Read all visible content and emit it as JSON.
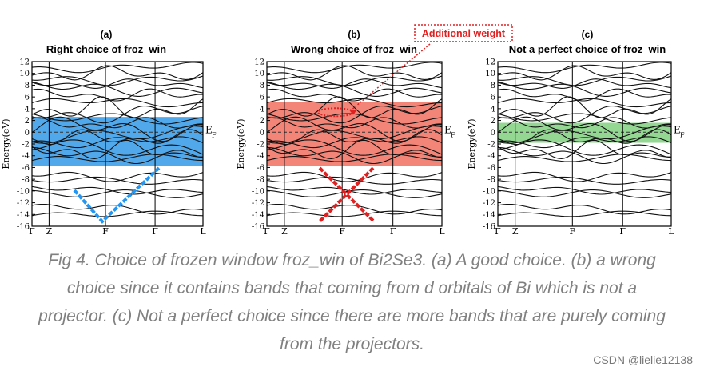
{
  "figure": {
    "y_axis_label": "Energy(eV)",
    "fermi_label_main": "E",
    "fermi_label_sub": "F",
    "callout": "Additional weight"
  },
  "chart_data": [
    {
      "type": "line",
      "panel": "(a)",
      "title": "Right choice of froz_win",
      "ylabel": "Energy(eV)",
      "ylim": [
        -16,
        12
      ],
      "yticks": [
        -16,
        -14,
        -12,
        -10,
        -8,
        -6,
        -4,
        -2,
        0,
        2,
        4,
        6,
        8,
        10,
        12
      ],
      "xticks": [
        "Γ",
        "Z",
        "F",
        "Γ",
        "L"
      ],
      "fermi_level": 0,
      "frozen_window": {
        "emin": -5.8,
        "emax": 2.6,
        "color": "#3399e6"
      },
      "marker": {
        "shape": "check",
        "color": "#2196f3"
      }
    },
    {
      "type": "line",
      "panel": "(b)",
      "title": "Wrong choice of froz_win",
      "ylabel": "Energy(eV)",
      "ylim": [
        -16,
        12
      ],
      "yticks": [
        -16,
        -14,
        -12,
        -10,
        -8,
        -6,
        -4,
        -2,
        0,
        2,
        4,
        6,
        8,
        10,
        12
      ],
      "xticks": [
        "Γ",
        "Z",
        "F",
        "Γ",
        "L"
      ],
      "fermi_level": 0,
      "frozen_window": {
        "emin": -5.8,
        "emax": 5.2,
        "color": "#f07060"
      },
      "marker": {
        "shape": "cross",
        "color": "#e02020"
      },
      "annotation": "Additional weight"
    },
    {
      "type": "line",
      "panel": "(c)",
      "title": "Not a perfect choice of froz_win",
      "ylabel": "Energy(eV)",
      "ylim": [
        -16,
        12
      ],
      "yticks": [
        -16,
        -14,
        -12,
        -10,
        -8,
        -6,
        -4,
        -2,
        0,
        2,
        4,
        6,
        8,
        10,
        12
      ],
      "xticks": [
        "Γ",
        "Z",
        "F",
        "Γ",
        "L"
      ],
      "fermi_level": 0,
      "frozen_window": {
        "emin": -1.8,
        "emax": 1.6,
        "color": "#80d080"
      }
    }
  ],
  "caption": {
    "lines": [
      "Fig 4. Choice of frozen window froz_win of Bi2Se3. (a) A good choice. (b) a wrong",
      "choice since it contains bands that coming from d orbitals of Bi which is not a",
      "projector. (c) Not a perfect choice since there are more bands that are purely coming",
      "from the projectors."
    ]
  },
  "watermark": "CSDN @lielie12138"
}
